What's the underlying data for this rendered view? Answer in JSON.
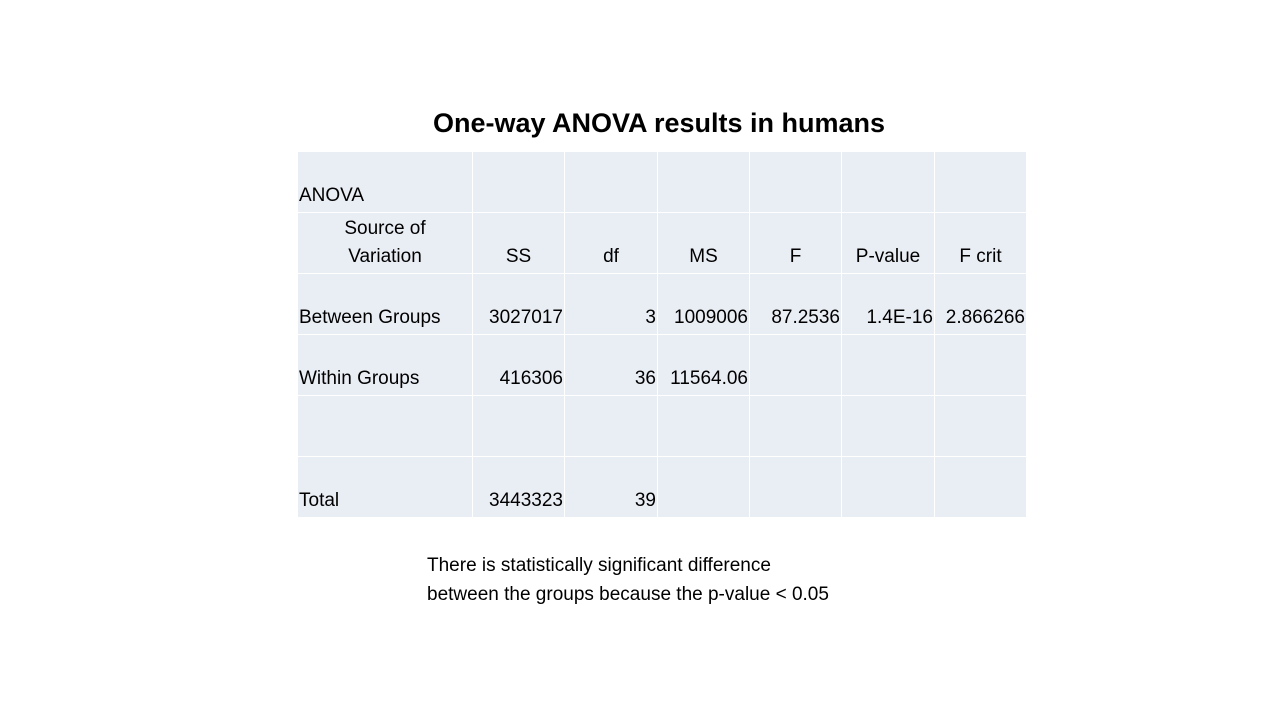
{
  "title": "One-way ANOVA results in humans",
  "table": {
    "rows": [
      [
        "ANOVA",
        null,
        null,
        null,
        null,
        null,
        null
      ],
      [
        "Source of Variation",
        "SS",
        "df",
        "MS",
        "F",
        "P-value",
        "F crit"
      ],
      [
        "Between Groups",
        "3027017",
        "3",
        "1009006",
        "87.2536",
        "1.4E-16",
        "2.866266"
      ],
      [
        "Within Groups",
        "416306",
        "36",
        "11564.06",
        null,
        null,
        null
      ],
      [
        null,
        null,
        null,
        null,
        null,
        null,
        null
      ],
      [
        "Total",
        "3443323",
        "39",
        null,
        null,
        null,
        null
      ]
    ]
  },
  "note": {
    "lines": [
      "There is statistically significant difference",
      "between the groups because the p-value < 0.05"
    ]
  }
}
